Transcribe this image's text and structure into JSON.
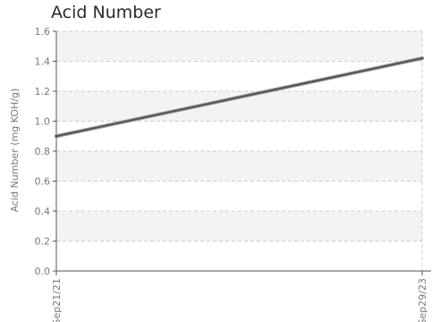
{
  "chart_data": {
    "type": "line",
    "title": "Acid Number",
    "xlabel": "",
    "ylabel": "Acid Number (mg KOH/g)",
    "ylim": [
      0,
      1.6
    ],
    "y_ticks": [
      "0.0",
      "0.2",
      "0.4",
      "0.6",
      "0.8",
      "1.0",
      "1.2",
      "1.4",
      "1.6"
    ],
    "x_ticks": [
      "Sep21/21",
      "Sep29/23"
    ],
    "grid": true,
    "legend": "none",
    "series": [
      {
        "x": [
          "Sep21/21",
          "Sep29/23"
        ],
        "values": [
          0.9,
          1.42
        ]
      }
    ],
    "colors": {
      "line": "#555555",
      "band": "#f3f3f3",
      "grid": "#cccccc",
      "axis": "#555555",
      "text": "#7a7a7a"
    }
  }
}
